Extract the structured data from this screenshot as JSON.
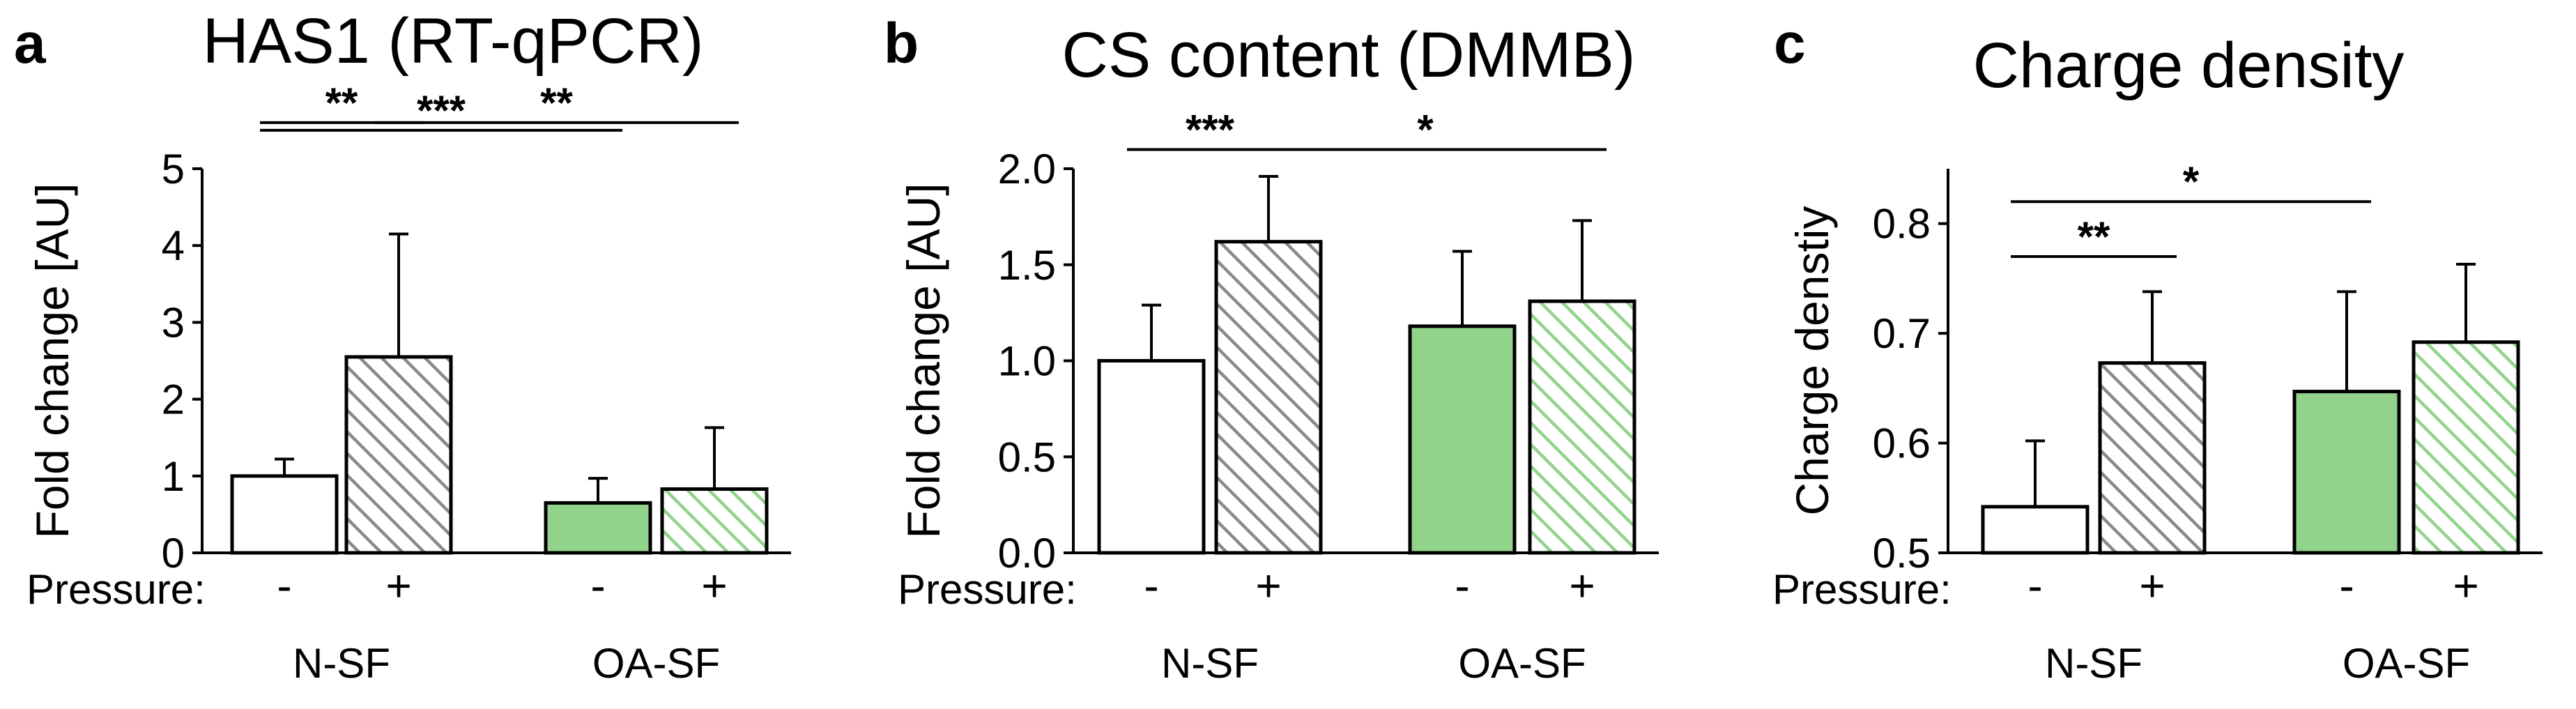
{
  "colors": {
    "white_bar": "#ffffff",
    "green_bar": "#92d38b",
    "gray_hatch": "#8a8a8a",
    "green_hatch": "#92d38b",
    "axis": "#000000"
  },
  "chart_data": [
    {
      "type": "bar",
      "panel": "a",
      "title": "HAS1 (RT-qPCR)",
      "ylabel": "Fold change [AU]",
      "xlabel": "",
      "ylim": [
        0,
        5
      ],
      "ticks": [
        0,
        1,
        2,
        3,
        4,
        5
      ],
      "tick_labels": [
        "0",
        "1",
        "2",
        "3",
        "4",
        "5"
      ],
      "pressure_label": "Pressure:",
      "groups": [
        "N-SF",
        "OA-SF"
      ],
      "categories": [
        "-",
        "+",
        "-",
        "+"
      ],
      "values": [
        1.0,
        2.55,
        0.65,
        0.83
      ],
      "errors": [
        0.22,
        1.6,
        0.32,
        0.8
      ],
      "fills": [
        "white",
        "gray-hatch",
        "green",
        "green-hatch"
      ],
      "significance": [
        {
          "from": 0,
          "to": 1,
          "label": "**",
          "y": 5.6
        },
        {
          "from": 1,
          "to": 3,
          "label": "**",
          "y": 5.6
        },
        {
          "from": 0,
          "to": 2,
          "label": "***",
          "y": 5.5
        }
      ]
    },
    {
      "type": "bar",
      "panel": "b",
      "title": "CS content (DMMB)",
      "ylabel": "Fold change [AU]",
      "xlabel": "",
      "ylim": [
        0,
        2.0
      ],
      "ticks": [
        0,
        0.5,
        1.0,
        1.5,
        2.0
      ],
      "tick_labels": [
        "0.0",
        "0.5",
        "1.0",
        "1.5",
        "2.0"
      ],
      "pressure_label": "Pressure:",
      "groups": [
        "N-SF",
        "OA-SF"
      ],
      "categories": [
        "-",
        "+",
        "-",
        "+"
      ],
      "values": [
        1.0,
        1.62,
        1.18,
        1.31
      ],
      "errors": [
        0.29,
        0.34,
        0.39,
        0.42
      ],
      "fills": [
        "white",
        "gray-hatch",
        "green",
        "green-hatch"
      ],
      "significance": [
        {
          "from": 0,
          "to": 1,
          "label": "***",
          "y": 2.1
        },
        {
          "from": 1,
          "to": 3,
          "label": "*",
          "y": 2.1
        }
      ]
    },
    {
      "type": "bar",
      "panel": "c",
      "title": "Charge density",
      "ylabel": "Charge denstiy",
      "xlabel": "",
      "ylim": [
        0.5,
        0.85
      ],
      "ticks": [
        0.5,
        0.6,
        0.7,
        0.8
      ],
      "tick_labels": [
        "0.5",
        "0.6",
        "0.7",
        "0.8"
      ],
      "pressure_label": "Pressure:",
      "groups": [
        "N-SF",
        "OA-SF"
      ],
      "categories": [
        "-",
        "+",
        "-",
        "+"
      ],
      "values": [
        0.542,
        0.673,
        0.647,
        0.692
      ],
      "errors": [
        0.06,
        0.065,
        0.091,
        0.071
      ],
      "fills": [
        "white",
        "gray-hatch",
        "green",
        "green-hatch"
      ],
      "significance": [
        {
          "from": 0,
          "to": 1,
          "label": "**",
          "y": 0.77
        },
        {
          "from": 0,
          "to": 2,
          "label": "*",
          "y": 0.82
        }
      ]
    }
  ]
}
